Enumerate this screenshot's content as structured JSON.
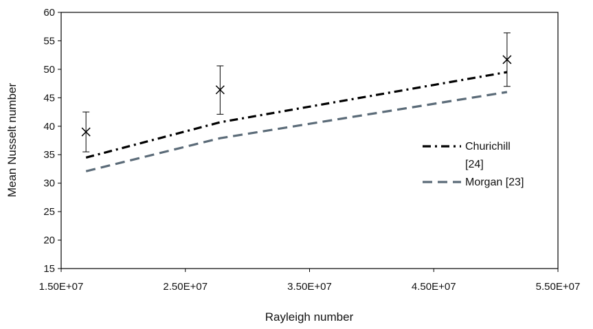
{
  "chart_data": {
    "type": "scatter",
    "title": "",
    "xlabel": "Rayleigh number",
    "ylabel": "Mean Nusselt number",
    "xlim": [
      15000000,
      55000000
    ],
    "ylim": [
      15,
      60
    ],
    "x_ticks": [
      15000000,
      25000000,
      35000000,
      45000000,
      55000000
    ],
    "x_tick_labels": [
      "1.50E+07",
      "2.50E+07",
      "3.50E+07",
      "4.50E+07",
      "5.50E+07"
    ],
    "y_ticks": [
      15,
      20,
      25,
      30,
      35,
      40,
      45,
      50,
      55,
      60
    ],
    "y_tick_labels": [
      "15",
      "20",
      "25",
      "30",
      "35",
      "40",
      "45",
      "50",
      "55",
      "60"
    ],
    "grid": false,
    "legend_position": "right",
    "experimental": {
      "marker": "x",
      "color": "#000000",
      "x": [
        17000000,
        27800000,
        50900000
      ],
      "y": [
        39.0,
        46.4,
        51.7
      ],
      "err_low": [
        35.5,
        42.1,
        47.0
      ],
      "err_high": [
        42.5,
        50.6,
        56.4
      ]
    },
    "series": [
      {
        "name": "Churichill [24]",
        "legend_label_lines": [
          "Churichill",
          "[24]"
        ],
        "style": "dash-dot",
        "color": "#000000",
        "x": [
          17000000,
          27800000,
          50900000
        ],
        "y": [
          34.5,
          40.7,
          49.5
        ]
      },
      {
        "name": "Morgan [23]",
        "legend_label_lines": [
          "Morgan [23]"
        ],
        "style": "dash",
        "color": "#5b6b78",
        "x": [
          17000000,
          27800000,
          50900000
        ],
        "y": [
          32.1,
          37.9,
          46.0
        ]
      }
    ]
  }
}
